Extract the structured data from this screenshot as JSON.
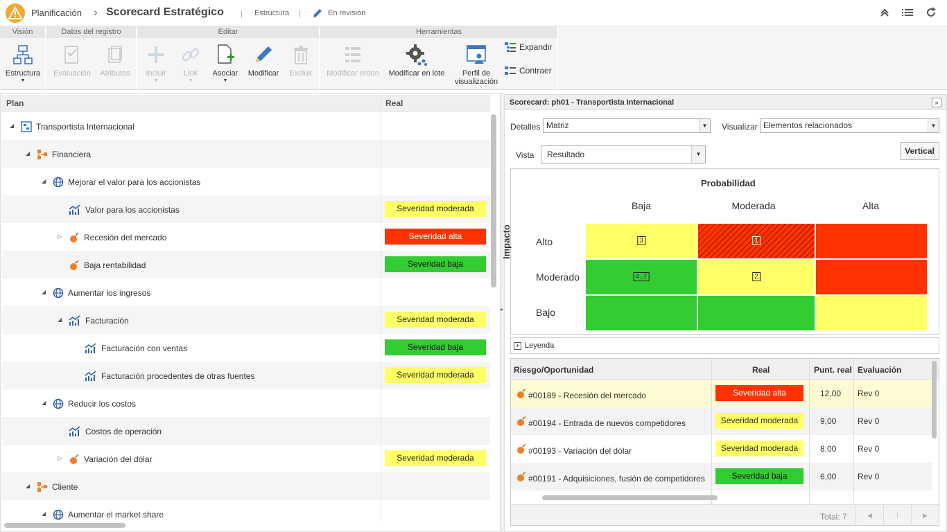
{
  "topbar": {
    "app": "Planificación",
    "sep": "›",
    "title": "Scorecard Estratégico",
    "crumb1": "Estructura",
    "status": "En revisión"
  },
  "ribbon": {
    "groups": [
      "Visión",
      "Datos del registro",
      "Editar",
      "Herramientas"
    ],
    "buttons": {
      "estructura": "Estructura",
      "evaluacion": "Evaluación",
      "atributos": "Atributos",
      "incluir": "Incluir",
      "link": "Link",
      "asociar": "Asociar",
      "modificar": "Modificar",
      "excluir": "Excluir",
      "modificar_orden": "Modificar orden",
      "modificar_lote": "Modificar en lote",
      "perfil1": "Perfil de",
      "perfil2": "visualización",
      "expandir": "Expandir",
      "contraer": "Contraer"
    }
  },
  "left": {
    "col_plan": "Plan",
    "col_real": "Real",
    "rows": [
      {
        "label": "Transportista Internacional",
        "badge": ""
      },
      {
        "label": "Financiera",
        "badge": ""
      },
      {
        "label": "Mejorar el valor para los accionistas",
        "badge": ""
      },
      {
        "label": "Valor para los accionistas",
        "badge": "Severidad moderada"
      },
      {
        "label": "Recesión del mercado",
        "badge": "Severidad alta"
      },
      {
        "label": "Baja rentabilidad",
        "badge": "Severidad baja"
      },
      {
        "label": "Aumentar los ingresos",
        "badge": ""
      },
      {
        "label": "Facturación",
        "badge": "Severidad moderada"
      },
      {
        "label": "Facturación con ventas",
        "badge": "Severidad baja"
      },
      {
        "label": "Facturación procedentes de otras fuentes",
        "badge": "Severidad moderada"
      },
      {
        "label": "Reducir los costos",
        "badge": ""
      },
      {
        "label": "Costos de operación",
        "badge": ""
      },
      {
        "label": "Variación del dólar",
        "badge": "Severidad moderada"
      },
      {
        "label": "Cliente",
        "badge": ""
      },
      {
        "label": "Aumentar el market share",
        "badge": ""
      }
    ]
  },
  "right": {
    "header": "Scorecard: ph01 - Transportista Internacional",
    "detalles_label": "Detalles",
    "detalles_value": "Matriz",
    "visualizar_label": "Visualizar",
    "visualizar_value": "Elementos relacionados",
    "vista_label": "Vista",
    "vista_value": "Resultado",
    "vertical_btn": "Vertical",
    "matrix": {
      "title": "Probabilidad",
      "y_title": "Impacto",
      "cols": [
        "Baja",
        "Moderada",
        "Alta"
      ],
      "rows": [
        "Alto",
        "Moderado",
        "Bajo"
      ],
      "counts": {
        "alto_baja": "3",
        "alto_moderada": "1",
        "moderado_baja": "4..7",
        "moderado_moderada": "2"
      }
    },
    "legend": "Leyenda",
    "table": {
      "headers": [
        "Riesgo/Oportunidad",
        "Real",
        "Punt. real",
        "Evaluación"
      ],
      "rows": [
        {
          "name": "#00189 - Recesión del mercado",
          "badge": "Severidad alta",
          "score": "12,00",
          "eval": "Rev 0"
        },
        {
          "name": "#00194 - Entrada de nuevos competidores",
          "badge": "Severidad moderada",
          "score": "9,00",
          "eval": "Rev 0"
        },
        {
          "name": "#00193 - Variación del dólar",
          "badge": "Severidad moderada",
          "score": "8,00",
          "eval": "Rev 0"
        },
        {
          "name": "#00191 - Adquisiciones, fusión de competidores",
          "badge": "Severidad baja",
          "score": "6,00",
          "eval": "Rev 0"
        }
      ],
      "total": "Total: 7"
    }
  },
  "colors": {
    "moderada": "#ffff66",
    "alta": "#ff3300",
    "baja": "#33cc33"
  }
}
